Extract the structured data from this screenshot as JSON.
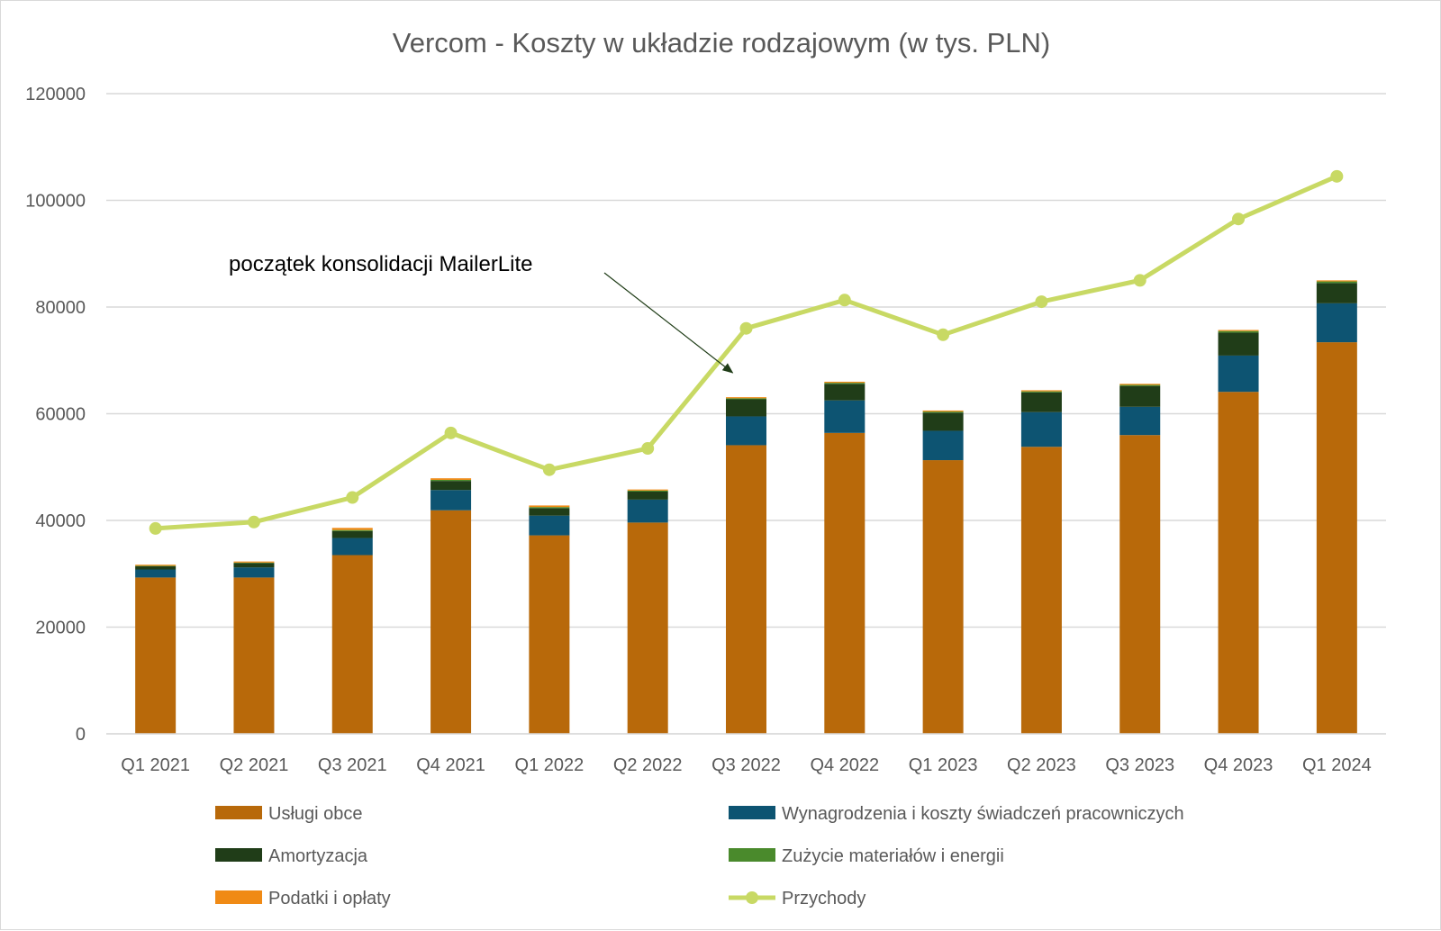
{
  "chart_data": {
    "type": "bar",
    "stacked": true,
    "title": "Vercom - Koszty w układzie rodzajowym (w tys. PLN)",
    "xlabel": "",
    "ylabel": "",
    "ylim": [
      0,
      120000
    ],
    "yticks": [
      0,
      20000,
      40000,
      60000,
      80000,
      100000,
      120000
    ],
    "ytick_labels": [
      "0",
      "20000",
      "40000",
      "60000",
      "80000",
      "100000",
      "120000"
    ],
    "grid": true,
    "legend_position": "bottom",
    "categories": [
      "Q1 2021",
      "Q2 2021",
      "Q3 2021",
      "Q4 2021",
      "Q1 2022",
      "Q2 2022",
      "Q3 2022",
      "Q4 2022",
      "Q1 2023",
      "Q2 2023",
      "Q3 2023",
      "Q4 2023",
      "Q1 2024"
    ],
    "series": [
      {
        "name": "Usługi obce",
        "type": "bar",
        "color": "#b8690a",
        "values": [
          29300,
          29300,
          33500,
          41900,
          37200,
          39600,
          54100,
          56400,
          51300,
          53800,
          56000,
          64100,
          73400
        ]
      },
      {
        "name": "Wynagrodzenia i koszty świadczeń pracowniczych",
        "type": "bar",
        "color": "#0d5472",
        "values": [
          1500,
          1900,
          3200,
          3800,
          3700,
          4300,
          5400,
          6100,
          5500,
          6500,
          5300,
          6800,
          7300
        ]
      },
      {
        "name": "Amortyzacja",
        "type": "bar",
        "color": "#203d18",
        "values": [
          600,
          800,
          1300,
          1700,
          1400,
          1500,
          3200,
          3100,
          3400,
          3700,
          3900,
          4300,
          3800
        ]
      },
      {
        "name": "Zużycie materiałów i energii",
        "type": "bar",
        "color": "#4a8a2c",
        "values": [
          100,
          100,
          200,
          200,
          200,
          200,
          200,
          200,
          200,
          200,
          200,
          300,
          300
        ]
      },
      {
        "name": "Podatki i opłaty",
        "type": "bar",
        "color": "#f08a15",
        "values": [
          200,
          200,
          400,
          300,
          300,
          200,
          200,
          200,
          200,
          200,
          200,
          200,
          200
        ]
      },
      {
        "name": "Przychody",
        "type": "line",
        "color": "#c8d964",
        "values": [
          38500,
          39700,
          44300,
          56400,
          49500,
          53500,
          76000,
          81300,
          74800,
          81000,
          85000,
          96500,
          104500
        ]
      }
    ],
    "annotations": [
      {
        "text": "początek konsolidacji MailerLite",
        "points_to_category": "Q3 2022"
      }
    ]
  }
}
